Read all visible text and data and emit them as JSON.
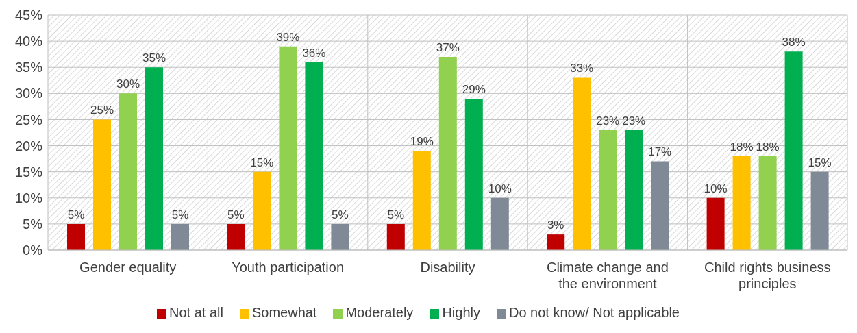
{
  "chart_data": {
    "type": "bar",
    "categories": [
      "Gender equality",
      "Youth participation",
      "Disability",
      "Climate change and the environment",
      "Child rights business principles"
    ],
    "series": [
      {
        "name": "Not at all",
        "color": "#c00000",
        "values": [
          5,
          5,
          5,
          3,
          10
        ],
        "value_labels": [
          "5%",
          "5%",
          "5%",
          "3%",
          "10%"
        ]
      },
      {
        "name": "Somewhat",
        "color": "#ffc000",
        "values": [
          25,
          15,
          19,
          33,
          18
        ],
        "value_labels": [
          "25%",
          "15%",
          "19%",
          "33%",
          "18%"
        ]
      },
      {
        "name": "Moderately",
        "color": "#92d050",
        "values": [
          30,
          39,
          37,
          23,
          18
        ],
        "value_labels": [
          "30%",
          "39%",
          "37%",
          "23%",
          "18%"
        ]
      },
      {
        "name": "Highly",
        "color": "#00b050",
        "values": [
          35,
          36,
          29,
          23,
          38
        ],
        "value_labels": [
          "35%",
          "36%",
          "29%",
          "23%",
          "38%"
        ]
      },
      {
        "name": "Do not know/ Not applicable",
        "color": "#7f8a96",
        "values": [
          5,
          5,
          10,
          17,
          15
        ],
        "value_labels": [
          "5%",
          "5%",
          "10%",
          "17%",
          "15%"
        ]
      }
    ],
    "ylim": [
      0,
      45
    ],
    "yticks": [
      {
        "value": 0,
        "label": "0%"
      },
      {
        "value": 5,
        "label": "5%"
      },
      {
        "value": 10,
        "label": "10%"
      },
      {
        "value": 15,
        "label": "15%"
      },
      {
        "value": 20,
        "label": "20%"
      },
      {
        "value": 25,
        "label": "25%"
      },
      {
        "value": 30,
        "label": "30%"
      },
      {
        "value": 35,
        "label": "35%"
      },
      {
        "value": 40,
        "label": "40%"
      },
      {
        "value": 45,
        "label": "45%"
      }
    ],
    "grid": true,
    "legend": "bottom"
  }
}
